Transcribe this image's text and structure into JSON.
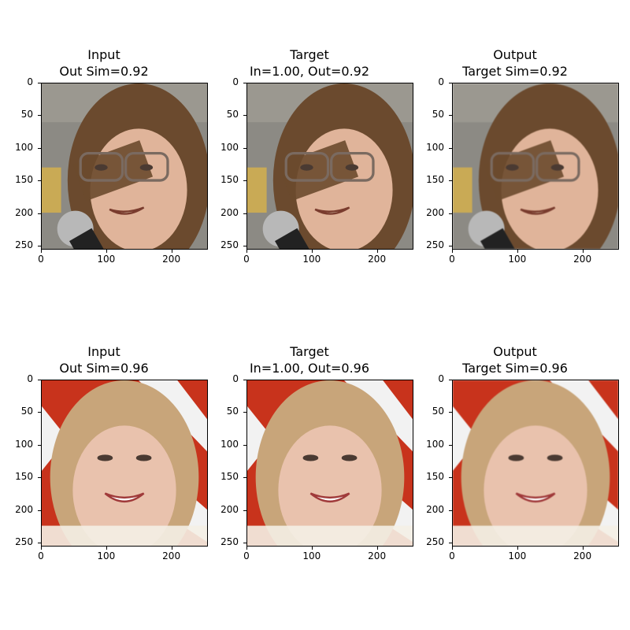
{
  "colors": {
    "row1_bg": "#8c8a84",
    "row1_hair": "#6b4a2e",
    "row1_skin": "#e0b49a",
    "row2_bg": "#c8331c",
    "row2_stripe": "#f2f2f2",
    "row2_hair": "#c8a57a",
    "row2_skin": "#e9c2ad"
  },
  "panels": [
    {
      "title1": "Input",
      "title2": "Out Sim=0.92"
    },
    {
      "title1": "Target",
      "title2": "In=1.00, Out=0.92"
    },
    {
      "title1": "Output",
      "title2": "Target Sim=0.92"
    },
    {
      "title1": "Input",
      "title2": "Out Sim=0.96"
    },
    {
      "title1": "Target",
      "title2": "In=1.00, Out=0.96"
    },
    {
      "title1": "Output",
      "title2": "Target Sim=0.96"
    }
  ],
  "chart_data": {
    "type": "image-grid",
    "rows": 2,
    "cols": 3,
    "x_ticks": [
      0,
      100,
      200
    ],
    "y_ticks": [
      0,
      50,
      100,
      150,
      200,
      250
    ],
    "xlim": [
      0,
      256
    ],
    "ylim": [
      256,
      0
    ],
    "similarities": [
      {
        "row": 1,
        "in": 1.0,
        "out": 0.92
      },
      {
        "row": 2,
        "in": 1.0,
        "out": 0.96
      }
    ]
  }
}
